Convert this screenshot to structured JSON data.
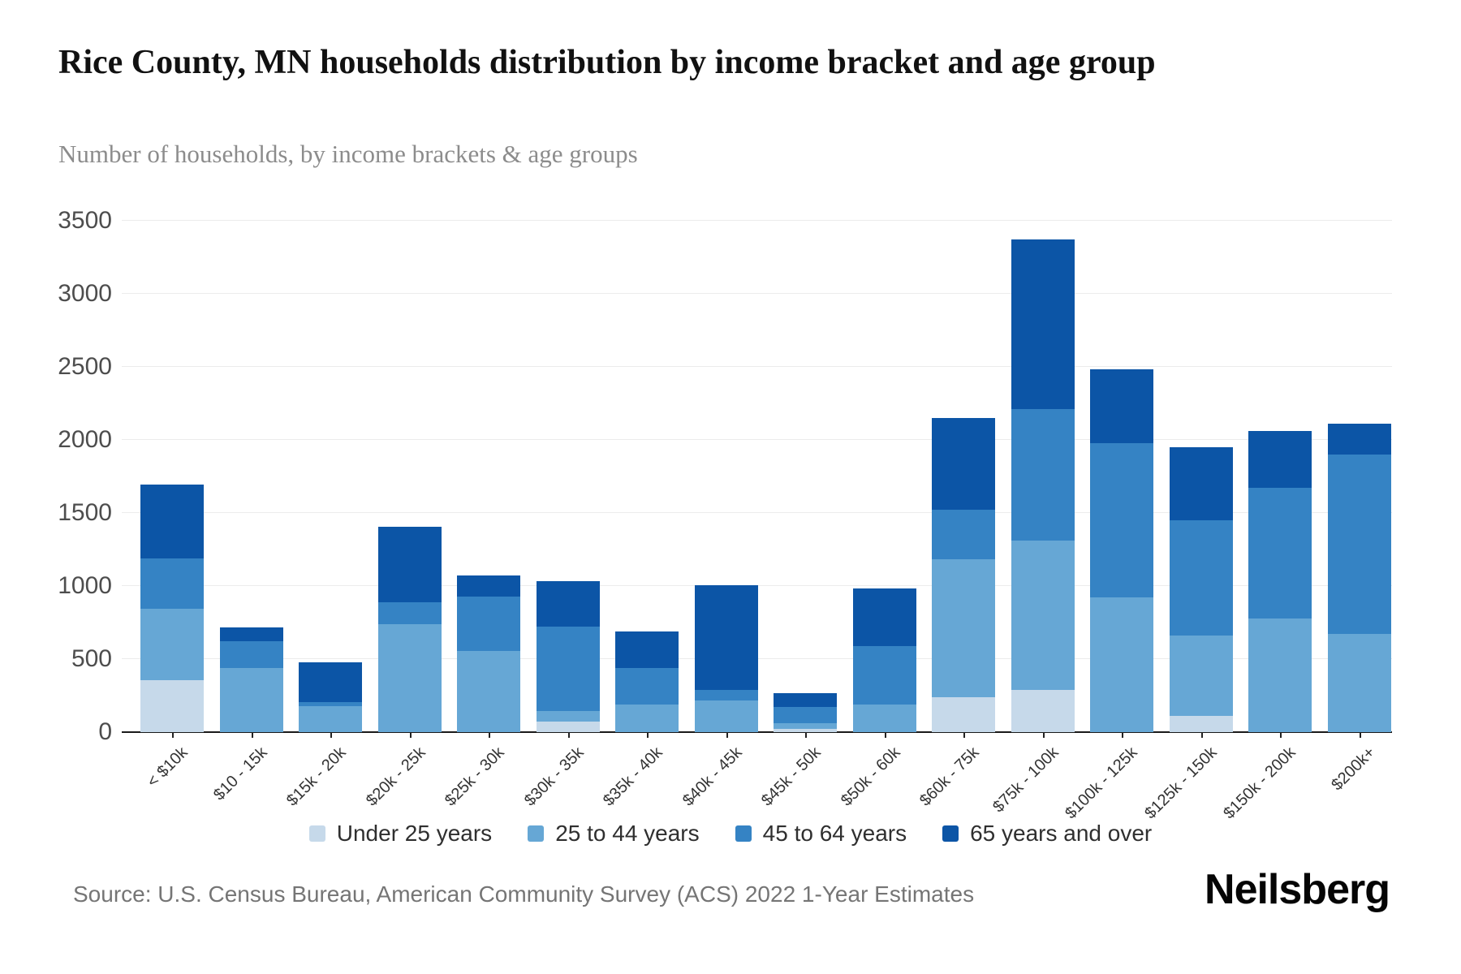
{
  "title": "Rice County, MN households distribution by income bracket and age group",
  "subtitle": "Number of households, by income brackets & age groups",
  "source": "Source: U.S. Census Bureau, American Community Survey (ACS) 2022 1-Year Estimates",
  "brand": "Neilsberg",
  "colors": {
    "background": "#ffffff",
    "gridline": "#ececec",
    "axis": "#1a1a1a",
    "under_25": "#c6d9ea",
    "age_25_44": "#66a7d5",
    "age_45_64": "#3583c4",
    "age_65_over": "#0c55a6"
  },
  "legend": {
    "items": [
      {
        "label": "Under 25 years",
        "color": "#c6d9ea"
      },
      {
        "label": "25 to 44 years",
        "color": "#66a7d5"
      },
      {
        "label": "45 to 64 years",
        "color": "#3583c4"
      },
      {
        "label": "65 years and over",
        "color": "#0c55a6"
      }
    ]
  },
  "chart_data": {
    "type": "bar",
    "stacked": true,
    "title": "Rice County, MN households distribution by income bracket and age group",
    "subtitle": "Number of households, by income brackets & age groups",
    "xlabel": "",
    "ylabel": "Number of households",
    "ylim": [
      0,
      3500
    ],
    "y_ticks": [
      0,
      500,
      1000,
      1500,
      2000,
      2500,
      3000,
      3500
    ],
    "grid": "horizontal",
    "legend_position": "bottom",
    "categories": [
      "< $10k",
      "$10 - 15k",
      "$15k - 20k",
      "$20k - 25k",
      "$25k - 30k",
      "$30k - 35k",
      "$35k - 40k",
      "$40k - 45k",
      "$45k - 50k",
      "$50k - 60k",
      "$60k - 75k",
      "$75k - 100k",
      "$100k - 125k",
      "$125k - 150k",
      "$150k - 200k",
      "$200k+"
    ],
    "series": [
      {
        "name": "Under 25 years",
        "color": "#c6d9ea",
        "values": [
          355,
          0,
          0,
          0,
          0,
          70,
          0,
          0,
          25,
          0,
          240,
          290,
          0,
          110,
          0,
          0
        ]
      },
      {
        "name": "25 to 44 years",
        "color": "#66a7d5",
        "values": [
          490,
          440,
          180,
          740,
          555,
          75,
          190,
          215,
          35,
          190,
          945,
          1020,
          920,
          550,
          780,
          670
        ]
      },
      {
        "name": "45 to 64 years",
        "color": "#3583c4",
        "values": [
          345,
          185,
          25,
          150,
          375,
          575,
          250,
          75,
          110,
          400,
          340,
          900,
          1060,
          790,
          890,
          1230
        ]
      },
      {
        "name": "65 years and over",
        "color": "#0c55a6",
        "values": [
          505,
          90,
          275,
          515,
          145,
          315,
          250,
          715,
          95,
          395,
          625,
          1160,
          505,
          500,
          390,
          210
        ]
      }
    ],
    "bar_totals": [
      1695,
      715,
      480,
      1405,
      1075,
      1035,
      690,
      1005,
      265,
      985,
      2150,
      3370,
      2485,
      1950,
      2060,
      2110
    ]
  }
}
